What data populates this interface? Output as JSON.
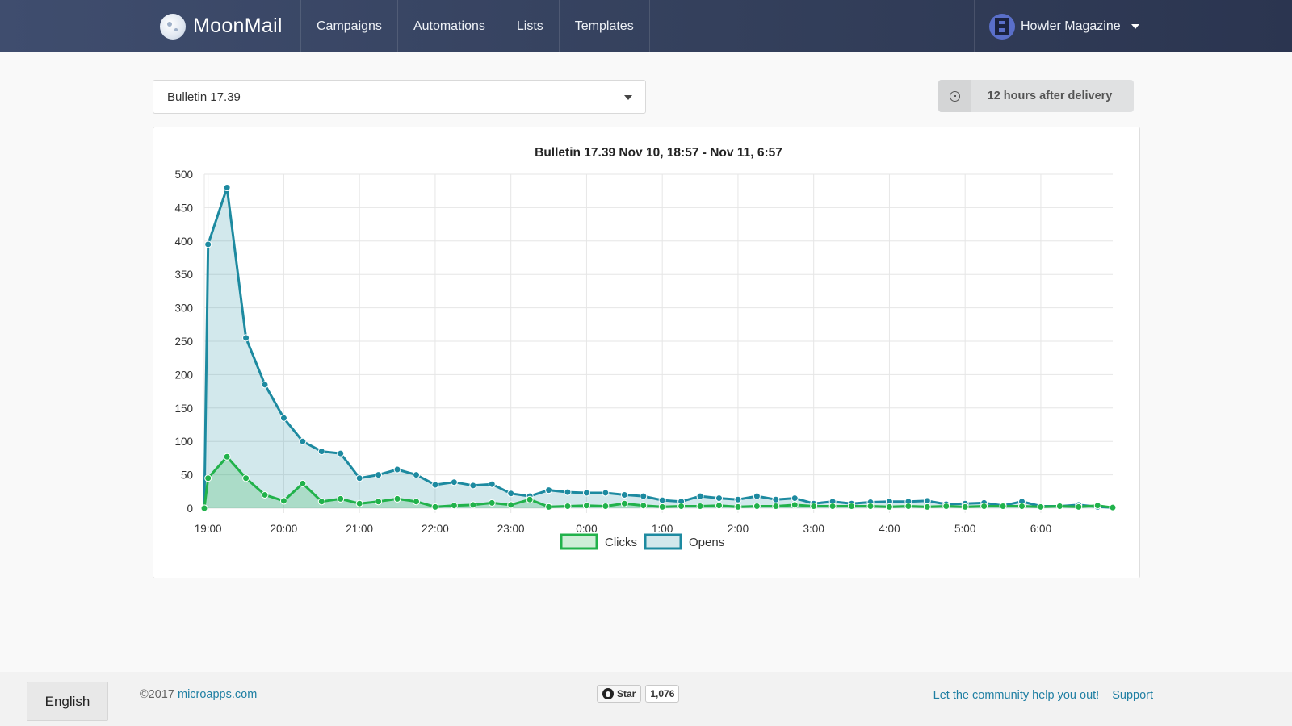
{
  "header": {
    "brand": "MoonMail",
    "nav": [
      "Campaigns",
      "Automations",
      "Lists",
      "Templates"
    ],
    "account": "Howler Magazine"
  },
  "controls": {
    "campaign": "Bulletin 17.39",
    "delivery_window": "12 hours after delivery",
    "delivery_icon": "clock-icon"
  },
  "chart_data": {
    "type": "area",
    "title": "Bulletin 17.39 Nov 10, 18:57 - Nov 11, 6:57",
    "ylim": [
      0,
      500
    ],
    "y_ticks": [
      0,
      50,
      100,
      150,
      200,
      250,
      300,
      350,
      400,
      450,
      500
    ],
    "x_tick_labels": [
      "19:00",
      "20:00",
      "21:00",
      "22:00",
      "23:00",
      "0:00",
      "1:00",
      "2:00",
      "3:00",
      "4:00",
      "5:00",
      "6:00"
    ],
    "x_range_minutes": [
      -3,
      717
    ],
    "grid": true,
    "legend_position": "bottom",
    "x_minutes_after_19": [
      -3,
      0,
      15,
      30,
      45,
      60,
      75,
      90,
      105,
      120,
      135,
      150,
      165,
      180,
      195,
      210,
      225,
      240,
      255,
      270,
      285,
      300,
      315,
      330,
      345,
      360,
      375,
      390,
      405,
      420,
      435,
      450,
      465,
      480,
      495,
      510,
      525,
      540,
      555,
      570,
      585,
      600,
      615,
      630,
      645,
      660,
      675,
      690,
      705,
      717
    ],
    "series": [
      {
        "name": "Clicks",
        "color": "#21b24b",
        "fill": "rgba(33,178,75,0.22)",
        "values": [
          0,
          45,
          77,
          45,
          20,
          11,
          37,
          10,
          14,
          7,
          10,
          14,
          10,
          2,
          4,
          5,
          8,
          5,
          13,
          2,
          3,
          4,
          3,
          7,
          4,
          2,
          3,
          3,
          4,
          2,
          3,
          3,
          5,
          3,
          3,
          3,
          3,
          2,
          3,
          2,
          3,
          2,
          3,
          3,
          3,
          2,
          3,
          2,
          4,
          1
        ]
      },
      {
        "name": "Opens",
        "color": "#1d8aa0",
        "fill": "rgba(29,138,160,0.2)",
        "values": [
          0,
          395,
          480,
          255,
          185,
          135,
          100,
          85,
          82,
          45,
          50,
          58,
          50,
          35,
          39,
          34,
          36,
          22,
          18,
          27,
          24,
          23,
          23,
          20,
          18,
          12,
          10,
          18,
          15,
          13,
          18,
          13,
          15,
          7,
          10,
          7,
          9,
          10,
          10,
          11,
          6,
          7,
          8,
          4,
          10,
          3,
          3,
          5,
          2,
          1
        ]
      }
    ]
  },
  "footer": {
    "language": "English",
    "copyright_prefix": "©2017",
    "copyright_link": "microapps.com",
    "github_star": "Star",
    "github_count": "1,076",
    "community_link": "Let the community help you out!",
    "support_link": "Support"
  }
}
